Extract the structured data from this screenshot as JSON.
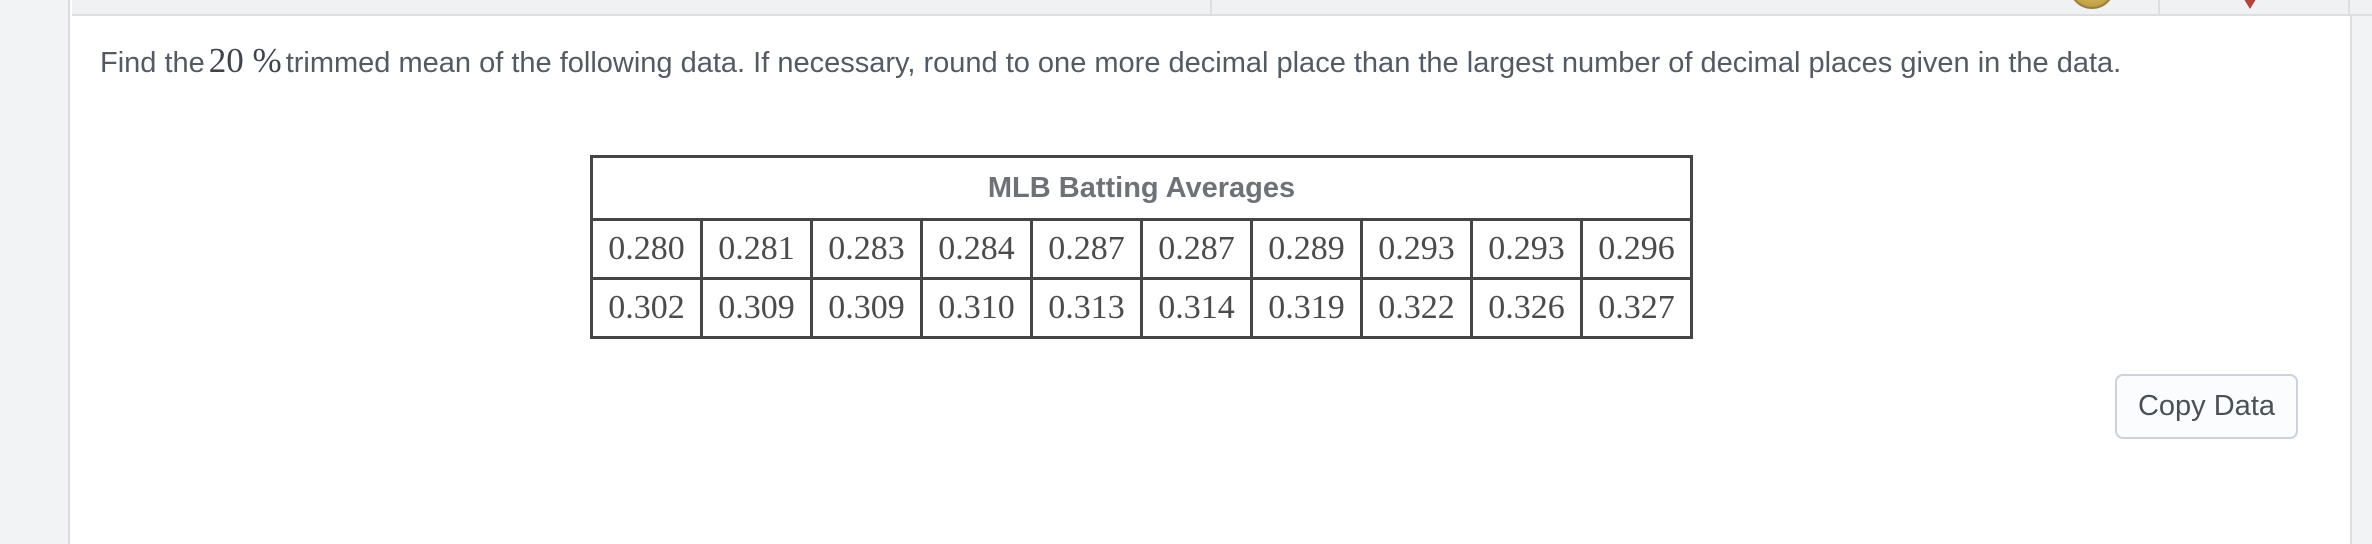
{
  "topbar": {
    "coin_icon_color": "#d3b254",
    "alert_icon_color": "#b6423a",
    "background": "#f0f1f2",
    "divider_color": "#dcdee1"
  },
  "question": {
    "prefix": "Find the",
    "math": "20 %",
    "suffix": "trimmed mean of the following data. If necessary, round to one more decimal place than the largest number of decimal places given in the data."
  },
  "table": {
    "title": "MLB Batting Averages",
    "rows": [
      [
        "0.280",
        "0.281",
        "0.283",
        "0.284",
        "0.287",
        "0.287",
        "0.289",
        "0.293",
        "0.293",
        "0.296"
      ],
      [
        "0.302",
        "0.309",
        "0.309",
        "0.310",
        "0.313",
        "0.314",
        "0.319",
        "0.322",
        "0.326",
        "0.327"
      ]
    ],
    "border_color": "#454545",
    "title_color": "#6e7276",
    "value_color": "#4b4b4b"
  },
  "actions": {
    "copy_button_label": "Copy Data"
  },
  "colors": {
    "question_text": "#545a63",
    "sidebar_bg": "#f2f3f5",
    "content_bg": "#ffffff",
    "button_border": "#cbd2d9"
  }
}
